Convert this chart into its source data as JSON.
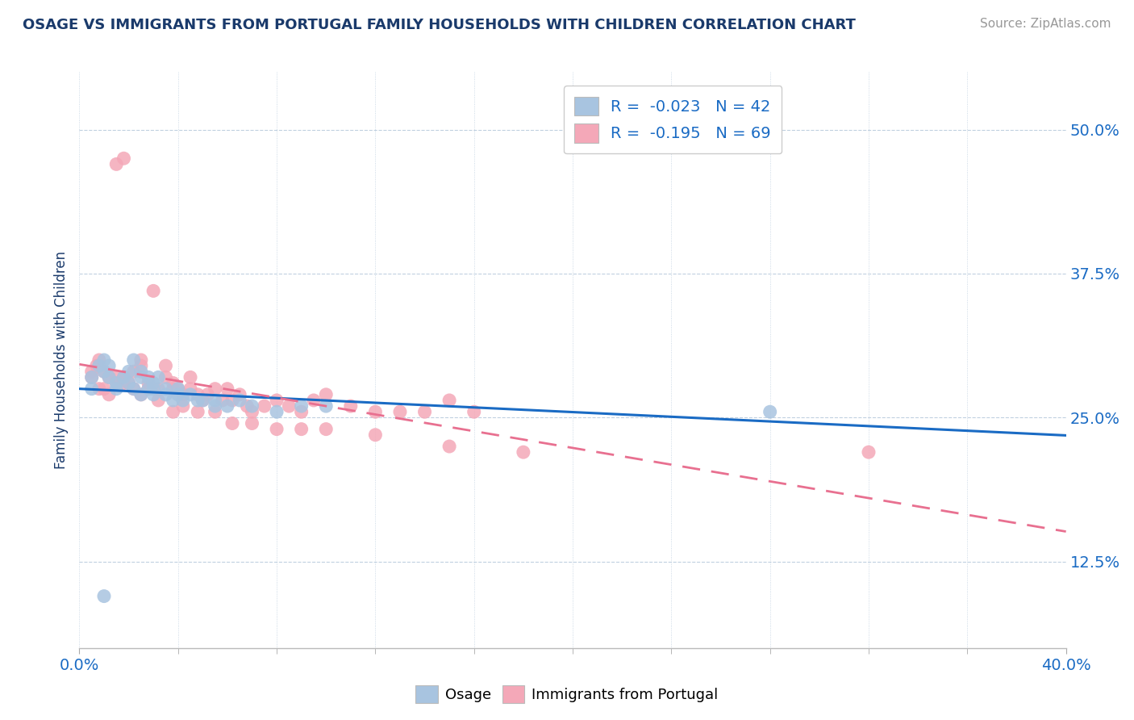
{
  "title": "OSAGE VS IMMIGRANTS FROM PORTUGAL FAMILY HOUSEHOLDS WITH CHILDREN CORRELATION CHART",
  "source": "Source: ZipAtlas.com",
  "ylabel": "Family Households with Children",
  "xlim": [
    0.0,
    0.4
  ],
  "ylim": [
    0.05,
    0.55
  ],
  "ytick_labels": [
    "12.5%",
    "25.0%",
    "37.5%",
    "50.0%"
  ],
  "ytick_values": [
    0.125,
    0.25,
    0.375,
    0.5
  ],
  "legend_r1": "-0.023",
  "legend_n1": "42",
  "legend_r2": "-0.195",
  "legend_n2": "69",
  "color_osage": "#a8c4e0",
  "color_portugal": "#f4a8b8",
  "color_blue_line": "#1a6bc4",
  "color_pink_line": "#e87090",
  "color_title": "#1a3a6b",
  "color_source": "#999999",
  "osage_x": [
    0.005,
    0.005,
    0.008,
    0.01,
    0.01,
    0.012,
    0.012,
    0.015,
    0.015,
    0.018,
    0.02,
    0.02,
    0.022,
    0.022,
    0.025,
    0.025,
    0.025,
    0.028,
    0.028,
    0.03,
    0.03,
    0.03,
    0.032,
    0.035,
    0.035,
    0.038,
    0.04,
    0.04,
    0.042,
    0.045,
    0.048,
    0.05,
    0.055,
    0.055,
    0.06,
    0.065,
    0.07,
    0.08,
    0.09,
    0.1,
    0.28,
    0.01
  ],
  "osage_y": [
    0.275,
    0.285,
    0.295,
    0.29,
    0.3,
    0.285,
    0.295,
    0.28,
    0.275,
    0.285,
    0.29,
    0.28,
    0.275,
    0.3,
    0.285,
    0.27,
    0.29,
    0.275,
    0.285,
    0.28,
    0.27,
    0.275,
    0.285,
    0.27,
    0.275,
    0.265,
    0.27,
    0.275,
    0.265,
    0.27,
    0.265,
    0.265,
    0.265,
    0.26,
    0.26,
    0.265,
    0.26,
    0.255,
    0.26,
    0.26,
    0.255,
    0.095
  ],
  "portugal_x": [
    0.005,
    0.007,
    0.008,
    0.01,
    0.012,
    0.015,
    0.015,
    0.018,
    0.018,
    0.02,
    0.022,
    0.025,
    0.025,
    0.028,
    0.03,
    0.032,
    0.035,
    0.035,
    0.038,
    0.038,
    0.04,
    0.042,
    0.045,
    0.045,
    0.048,
    0.05,
    0.052,
    0.055,
    0.058,
    0.06,
    0.062,
    0.065,
    0.068,
    0.07,
    0.075,
    0.08,
    0.085,
    0.09,
    0.095,
    0.1,
    0.11,
    0.12,
    0.13,
    0.14,
    0.15,
    0.16,
    0.18,
    0.005,
    0.008,
    0.01,
    0.012,
    0.015,
    0.018,
    0.022,
    0.025,
    0.028,
    0.032,
    0.038,
    0.042,
    0.048,
    0.055,
    0.062,
    0.07,
    0.08,
    0.09,
    0.1,
    0.12,
    0.15,
    0.32
  ],
  "portugal_y": [
    0.29,
    0.295,
    0.3,
    0.29,
    0.285,
    0.285,
    0.47,
    0.475,
    0.285,
    0.28,
    0.29,
    0.295,
    0.3,
    0.28,
    0.36,
    0.275,
    0.285,
    0.295,
    0.275,
    0.28,
    0.275,
    0.27,
    0.275,
    0.285,
    0.27,
    0.265,
    0.27,
    0.275,
    0.265,
    0.275,
    0.265,
    0.27,
    0.26,
    0.255,
    0.26,
    0.265,
    0.26,
    0.255,
    0.265,
    0.27,
    0.26,
    0.255,
    0.255,
    0.255,
    0.265,
    0.255,
    0.22,
    0.285,
    0.275,
    0.275,
    0.27,
    0.28,
    0.28,
    0.275,
    0.27,
    0.275,
    0.265,
    0.255,
    0.26,
    0.255,
    0.255,
    0.245,
    0.245,
    0.24,
    0.24,
    0.24,
    0.235,
    0.225,
    0.22
  ]
}
